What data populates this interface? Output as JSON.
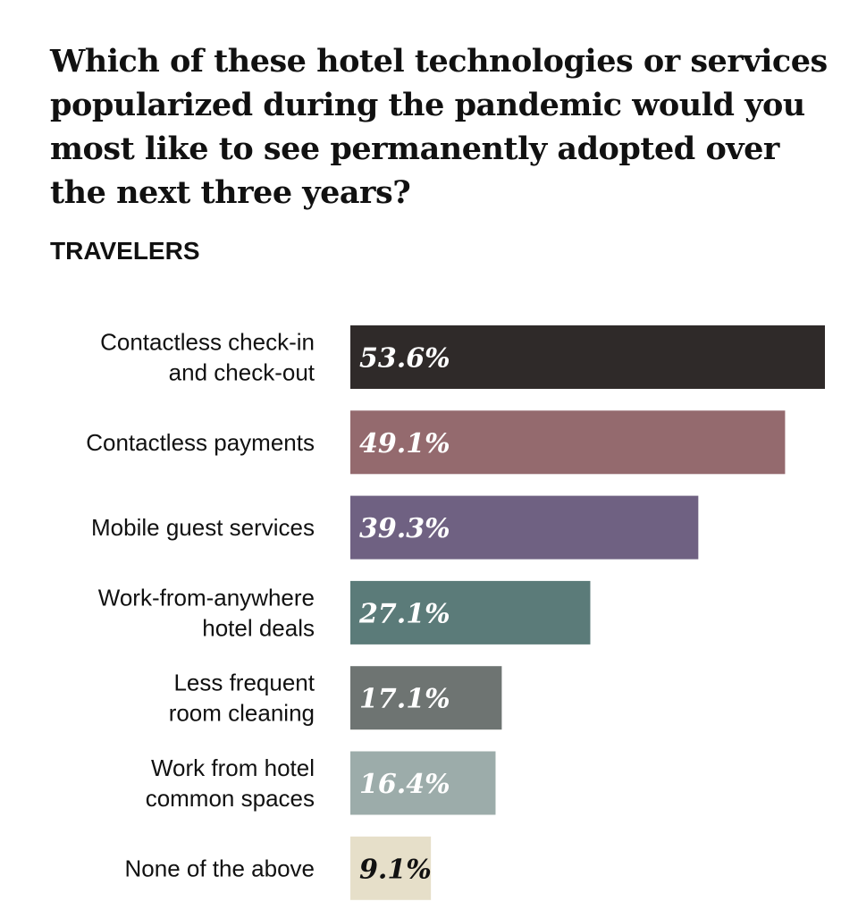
{
  "title": "Which of these hotel technologies or services popularized during the pandemic would you most like to see permanently adopted over the next three years?",
  "subtitle": "TRAVELERS",
  "chart_data": {
    "type": "bar",
    "orientation": "horizontal",
    "title": "Which of these hotel technologies or services popularized during the pandemic would you most like to see permanently adopted over the next three years?",
    "subtitle": "TRAVELERS",
    "xlim": [
      0,
      53.6
    ],
    "categories": [
      [
        "Contactless check-in",
        "and check-out"
      ],
      [
        "Contactless payments"
      ],
      [
        "Mobile guest services"
      ],
      [
        "Work-from-anywhere",
        "hotel deals"
      ],
      [
        "Less frequent",
        "room cleaning"
      ],
      [
        "Work from hotel",
        "common spaces"
      ],
      [
        "None of the above"
      ]
    ],
    "values": [
      53.6,
      49.1,
      39.3,
      27.1,
      17.1,
      16.4,
      9.1
    ],
    "value_labels": [
      "53.6%",
      "49.1%",
      "39.3%",
      "27.1%",
      "17.1%",
      "16.4%",
      "9.1%"
    ],
    "bar_colors": [
      "#2f2a29",
      "#946a6e",
      "#6f6182",
      "#5b7b79",
      "#6e7472",
      "#9cacaa",
      "#e6dfc9"
    ],
    "label_colors": [
      "#ffffff",
      "#ffffff",
      "#ffffff",
      "#ffffff",
      "#ffffff",
      "#ffffff",
      "#111111"
    ],
    "grid": false,
    "legend": "none"
  }
}
